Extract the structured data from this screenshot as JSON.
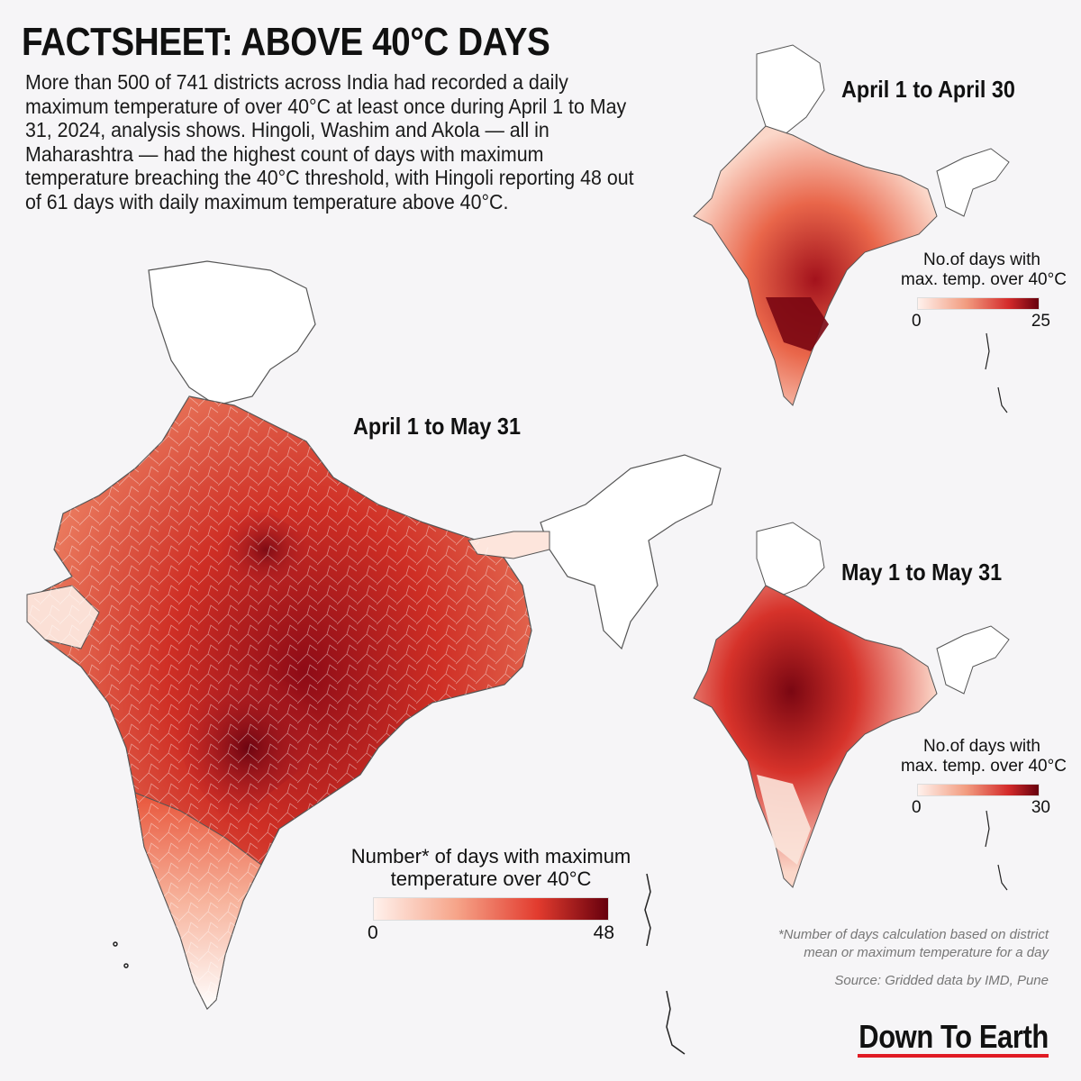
{
  "title": "FACTSHEET: ABOVE 40°C DAYS",
  "intro": "More than 500 of 741 districts across India had recorded a daily maximum temperature of over 40°C at least once during April 1 to May 31, 2024, analysis shows. Hingoli, Washim and Akola — all in Maharashtra — had the highest count of days with maximum temperature breaching the 40°C threshold, with Hingoli reporting 48 out of 61 days with daily maximum temperature above 40°C.",
  "maps": {
    "main": {
      "label": "April 1 to May 31",
      "legend_caption_line1": "Number* of days with maximum",
      "legend_caption_line2": "temperature over 40°C",
      "legend_min": "0",
      "legend_max": "48"
    },
    "april": {
      "label": "April 1 to April 30",
      "legend_caption_line1": "No.of days with",
      "legend_caption_line2": "max. temp. over 40°C",
      "legend_min": "0",
      "legend_max": "25"
    },
    "may": {
      "label": "May 1 to May 31",
      "legend_caption_line1": "No.of days with",
      "legend_caption_line2": "max. temp. over 40°C",
      "legend_min": "0",
      "legend_max": "30"
    }
  },
  "footnote_line1": "*Number of days calculation based on district",
  "footnote_line2": "mean or maximum temperature for a day",
  "source": "Source:  Gridded data by IMD, Pune",
  "brand": "Down To Earth",
  "colors": {
    "background": "#f6f5f7",
    "scale_low": "#fff1ec",
    "scale_mid": "#ef5a3c",
    "scale_high": "#67000d",
    "brand_underline": "#e01b24"
  }
}
